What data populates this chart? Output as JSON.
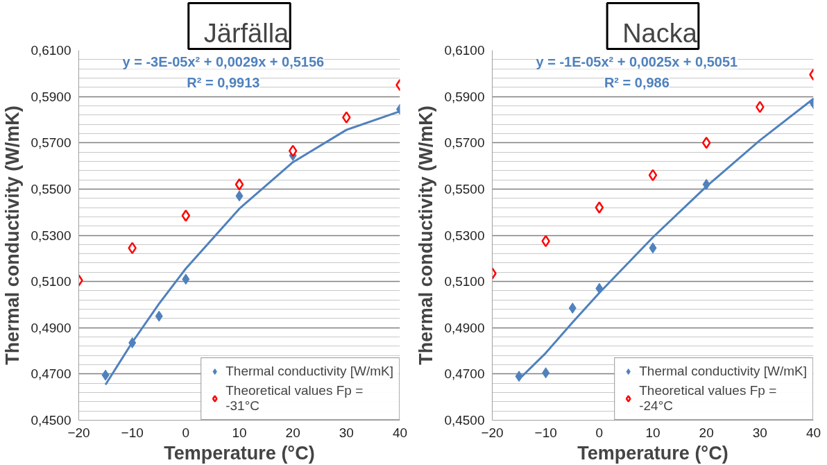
{
  "chart_data": [
    {
      "type": "scatter",
      "title": "Järfälla",
      "xlabel": "Temperature (°C)",
      "ylabel": "Thermal conductivity (W/mK)",
      "xlim": [
        -20,
        40
      ],
      "xticks": [
        -20,
        -10,
        0,
        10,
        20,
        30,
        40
      ],
      "ylim": [
        0.45,
        0.61
      ],
      "yticks": [
        {
          "value": 0.45,
          "label": "0,4500"
        },
        {
          "value": 0.47,
          "label": "0,4700"
        },
        {
          "value": 0.49,
          "label": "0,4900"
        },
        {
          "value": 0.51,
          "label": "0,5100"
        },
        {
          "value": 0.53,
          "label": "0,5300"
        },
        {
          "value": 0.55,
          "label": "0,5500"
        },
        {
          "value": 0.57,
          "label": "0,5700"
        },
        {
          "value": 0.59,
          "label": "0,5900"
        },
        {
          "value": 0.61,
          "label": "0,6100"
        }
      ],
      "grid": "y",
      "legend": "bottom right",
      "marker": "diamond",
      "annotations": [
        "y = -3E-05x² + 0,0029x + 0,5156",
        "R² = 0,9913"
      ],
      "series": [
        {
          "name": "Thermal conductivity [W/mK]",
          "color": "#4f81bd",
          "x": [
            -15,
            -10,
            -5,
            0,
            10,
            20,
            40
          ],
          "values": [
            0.4695,
            0.4835,
            0.495,
            0.511,
            0.547,
            0.5645,
            0.5845
          ]
        },
        {
          "name": "Theoretical values Fp = -31°C",
          "color": "#ff0000",
          "x": [
            -20,
            -10,
            0,
            10,
            20,
            30,
            40
          ],
          "values": [
            0.5105,
            0.5245,
            0.5385,
            0.552,
            0.5665,
            0.581,
            0.595
          ]
        },
        {
          "type": "line",
          "color": "#4f81bd",
          "marker": "none",
          "line_style": "solid",
          "x": [
            -15,
            -10,
            -5,
            0,
            10,
            20,
            30,
            40
          ],
          "values": [
            0.4654,
            0.4837,
            0.5004,
            0.5156,
            0.5415,
            0.5616,
            0.5756,
            0.5836
          ]
        }
      ]
    },
    {
      "type": "scatter",
      "title": "Nacka",
      "xlabel": "Temperature (°C)",
      "ylabel": "Thermal conductivity (W/mK)",
      "xlim": [
        -20,
        40
      ],
      "xticks": [
        -20,
        -10,
        0,
        10,
        20,
        30,
        40
      ],
      "ylim": [
        0.45,
        0.61
      ],
      "yticks": [
        {
          "value": 0.45,
          "label": "0,4500"
        },
        {
          "value": 0.47,
          "label": "0,4700"
        },
        {
          "value": 0.49,
          "label": "0,4900"
        },
        {
          "value": 0.51,
          "label": "0,5100"
        },
        {
          "value": 0.53,
          "label": "0,5300"
        },
        {
          "value": 0.55,
          "label": "0,5500"
        },
        {
          "value": 0.57,
          "label": "0,5700"
        },
        {
          "value": 0.59,
          "label": "0,5900"
        },
        {
          "value": 0.61,
          "label": "0,6100"
        }
      ],
      "grid": "y",
      "legend": "bottom right",
      "marker": "diamond",
      "annotations": [
        "y = -1E-05x² + 0,0025x + 0,5051",
        "R² = 0,986"
      ],
      "series": [
        {
          "name": "Thermal conductivity [W/mK]",
          "color": "#4f81bd",
          "x": [
            -15,
            -10,
            -5,
            0,
            10,
            20,
            40
          ],
          "values": [
            0.469,
            0.4705,
            0.4985,
            0.507,
            0.5245,
            0.552,
            0.587
          ]
        },
        {
          "name": "Theoretical values Fp = -24°C",
          "color": "#ff0000",
          "x": [
            -20,
            -10,
            0,
            10,
            20,
            30,
            40
          ],
          "values": [
            0.5135,
            0.5275,
            0.542,
            0.556,
            0.57,
            0.5855,
            0.5995
          ]
        },
        {
          "type": "line",
          "color": "#4f81bd",
          "marker": "none",
          "line_style": "solid",
          "x": [
            -15,
            -10,
            -5,
            0,
            10,
            20,
            30,
            40
          ],
          "values": [
            0.4677,
            0.4791,
            0.4923,
            0.5051,
            0.5291,
            0.5511,
            0.5711,
            0.5891
          ]
        }
      ]
    }
  ]
}
